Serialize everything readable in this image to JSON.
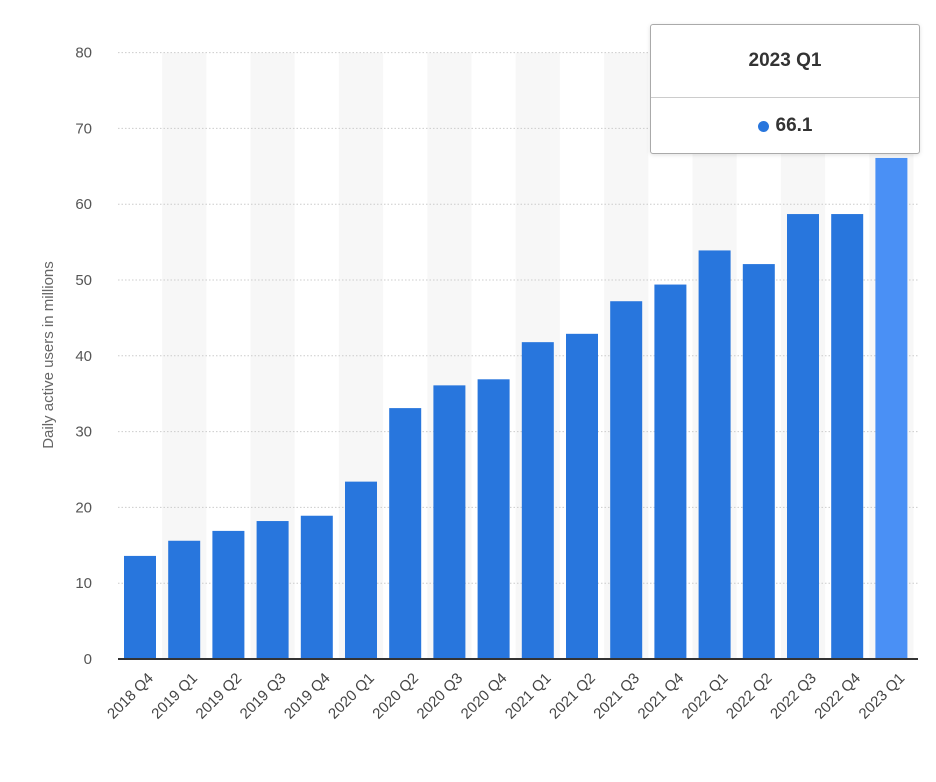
{
  "chart_data": {
    "type": "bar",
    "ylabel": "Daily active users in millions",
    "ylim": [
      0,
      80
    ],
    "yticks": [
      0,
      10,
      20,
      30,
      40,
      50,
      60,
      70,
      80
    ],
    "grid": true,
    "categories": [
      "2018 Q4",
      "2019 Q1",
      "2019 Q2",
      "2019 Q3",
      "2019 Q4",
      "2020 Q1",
      "2020 Q2",
      "2020 Q3",
      "2020 Q4",
      "2021 Q1",
      "2021 Q2",
      "2021 Q3",
      "2021 Q4",
      "2022 Q1",
      "2022 Q2",
      "2022 Q3",
      "2022 Q4",
      "2023 Q1"
    ],
    "values": [
      13.6,
      15.6,
      16.9,
      18.2,
      18.9,
      23.4,
      33.1,
      36.1,
      36.9,
      41.8,
      42.9,
      47.2,
      49.4,
      53.9,
      52.1,
      58.7,
      58.7,
      66.1
    ],
    "highlight_index": 17
  },
  "colors": {
    "bar": "#2876dd",
    "bar_highlight": "#4a90f5",
    "band": "#f7f7f7",
    "grid": "#cccccc",
    "axis": "#333333"
  },
  "tooltip": {
    "title": "2023 Q1",
    "value": "66.1"
  }
}
